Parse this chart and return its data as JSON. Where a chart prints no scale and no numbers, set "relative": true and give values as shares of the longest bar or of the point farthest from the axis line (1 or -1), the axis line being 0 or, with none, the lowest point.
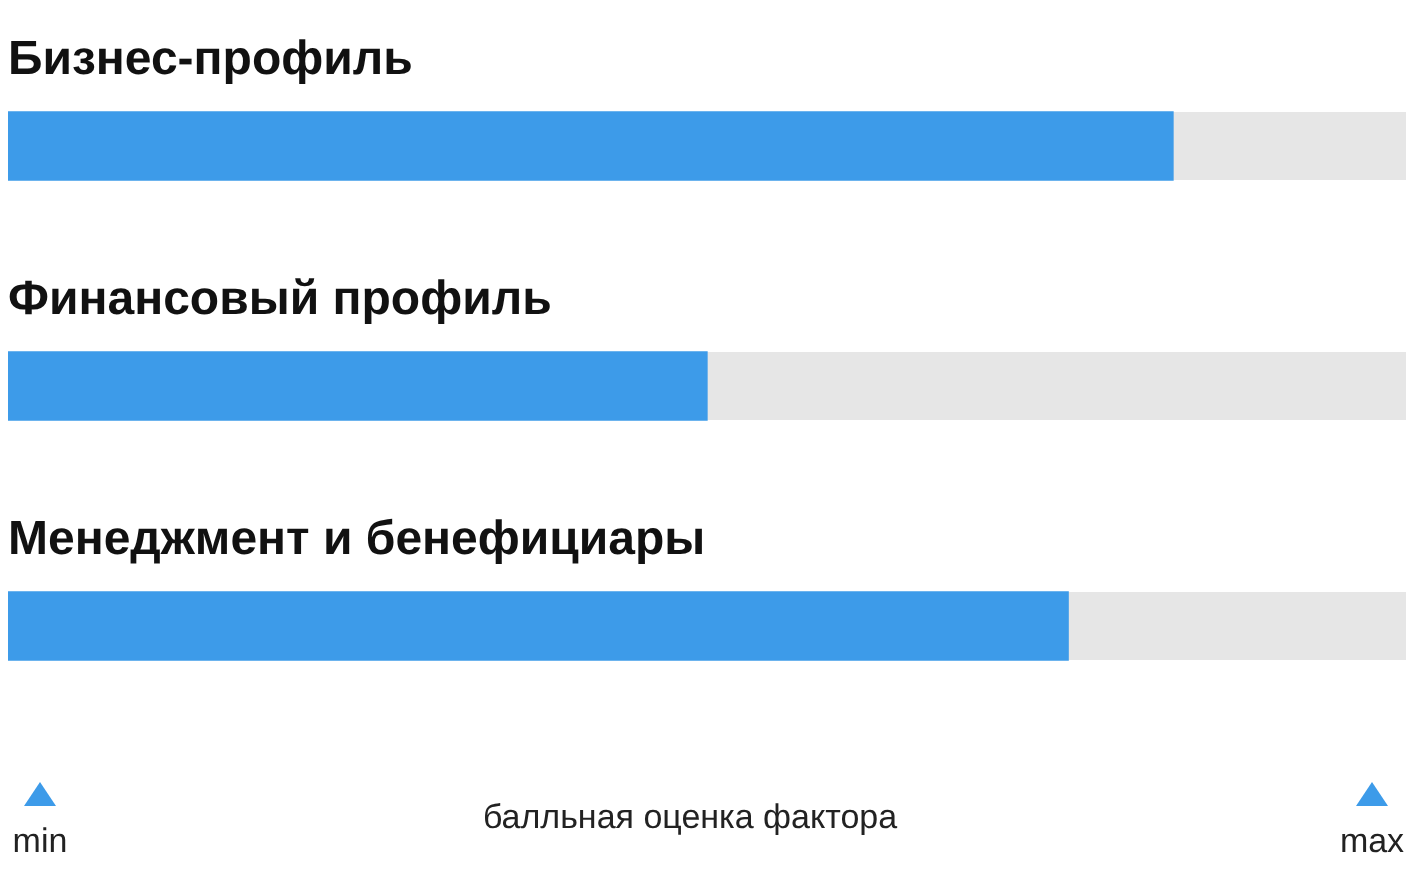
{
  "chart_data": {
    "type": "bar",
    "orientation": "horizontal",
    "relative": true,
    "categories": [
      "Бизнес-профиль",
      "Финансовый профиль",
      "Менеджмент и бенефициары"
    ],
    "values": [
      1,
      0.6,
      0.91
    ],
    "color": "#3d9be9",
    "xlabel": "балльная оценка фактора",
    "annotations": [
      "min",
      "max"
    ],
    "grid": false,
    "legend": false
  }
}
